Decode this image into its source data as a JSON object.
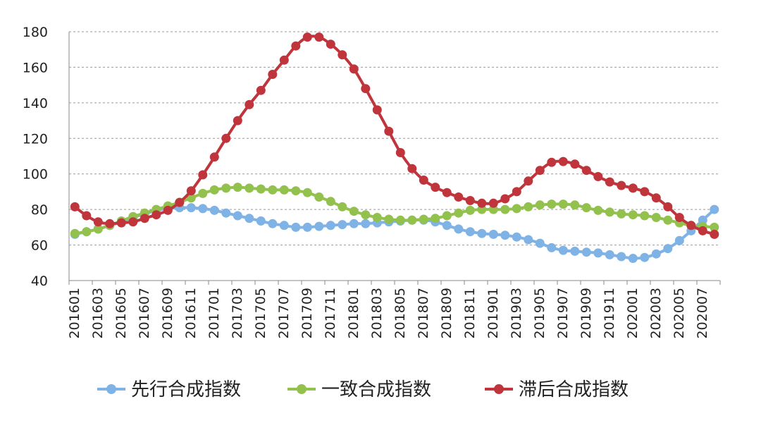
{
  "chart_data": {
    "type": "line",
    "title": "",
    "xlabel": "",
    "ylabel": "",
    "ylim": [
      40,
      180
    ],
    "yticks": [
      40,
      60,
      80,
      100,
      120,
      140,
      160,
      180
    ],
    "grid": true,
    "legend_position": "bottom",
    "xtick_labels": [
      "201601",
      "201603",
      "201605",
      "201607",
      "201609",
      "201611",
      "201701",
      "201703",
      "201705",
      "201707",
      "201709",
      "201711",
      "201801",
      "201803",
      "201805",
      "201807",
      "201809",
      "201811",
      "201901",
      "201903",
      "201905",
      "201907",
      "201909",
      "201911",
      "202001",
      "202003",
      "202005",
      "202007"
    ],
    "categories": [
      "201601",
      "201602",
      "201603",
      "201604",
      "201605",
      "201606",
      "201607",
      "201608",
      "201609",
      "201610",
      "201611",
      "201612",
      "201701",
      "201702",
      "201703",
      "201704",
      "201705",
      "201706",
      "201707",
      "201708",
      "201709",
      "201710",
      "201711",
      "201712",
      "201801",
      "201802",
      "201803",
      "201804",
      "201805",
      "201806",
      "201807",
      "201808",
      "201809",
      "201810",
      "201811",
      "201812",
      "201901",
      "201902",
      "201903",
      "201904",
      "201905",
      "201906",
      "201907",
      "201908",
      "201909",
      "201910",
      "201911",
      "201912",
      "202001",
      "202002",
      "202003",
      "202004",
      "202005",
      "202006",
      "202007",
      "202008"
    ],
    "series": [
      {
        "name": "先行合成指数",
        "color": "#7fb2e5",
        "values": [
          66,
          67.5,
          69,
          71,
          73,
          75.5,
          77.5,
          79.5,
          80.5,
          81,
          81,
          80.5,
          79.5,
          78,
          76.5,
          75,
          73.5,
          72,
          71,
          70,
          70,
          70.5,
          71,
          71.5,
          72,
          72,
          72.5,
          73,
          73.5,
          74,
          74,
          73,
          71,
          69,
          67.5,
          66.5,
          66,
          65.5,
          64.5,
          63,
          61,
          58.5,
          57,
          56.5,
          56,
          55.5,
          54.5,
          53.5,
          52.5,
          53,
          55,
          58,
          62.5,
          68,
          74,
          80
        ]
      },
      {
        "name": "一致合成指数",
        "color": "#92c14d",
        "values": [
          66.5,
          67.5,
          69,
          71,
          73.5,
          76,
          78,
          80,
          82,
          84,
          86.5,
          89,
          91,
          92,
          92.5,
          92,
          91.5,
          91,
          91,
          90.5,
          89.5,
          87,
          84.5,
          81.5,
          79,
          77,
          75.5,
          74.5,
          74,
          74,
          74.5,
          75,
          76.5,
          78,
          79.5,
          80,
          80,
          80,
          80.5,
          81.5,
          82.5,
          83,
          83,
          82.5,
          81,
          79.5,
          78.5,
          77.5,
          77,
          76.5,
          75.5,
          74,
          72.5,
          71,
          70.5,
          70
        ]
      },
      {
        "name": "滞后合成指数",
        "color": "#c0343c",
        "values": [
          81.5,
          76.5,
          73,
          72,
          72.5,
          73,
          75,
          77,
          79.5,
          84,
          90.5,
          99.5,
          109.5,
          120,
          130,
          139,
          147,
          156,
          164,
          172,
          177,
          177,
          173,
          167,
          159,
          148,
          136,
          124,
          112,
          103,
          96.5,
          92.5,
          89.5,
          87,
          85,
          83.5,
          83.5,
          86,
          90,
          96,
          102,
          106.5,
          107,
          105.5,
          102,
          98.5,
          95.5,
          93.5,
          92,
          90,
          86.5,
          81.5,
          75.5,
          71,
          68,
          66
        ]
      }
    ]
  }
}
